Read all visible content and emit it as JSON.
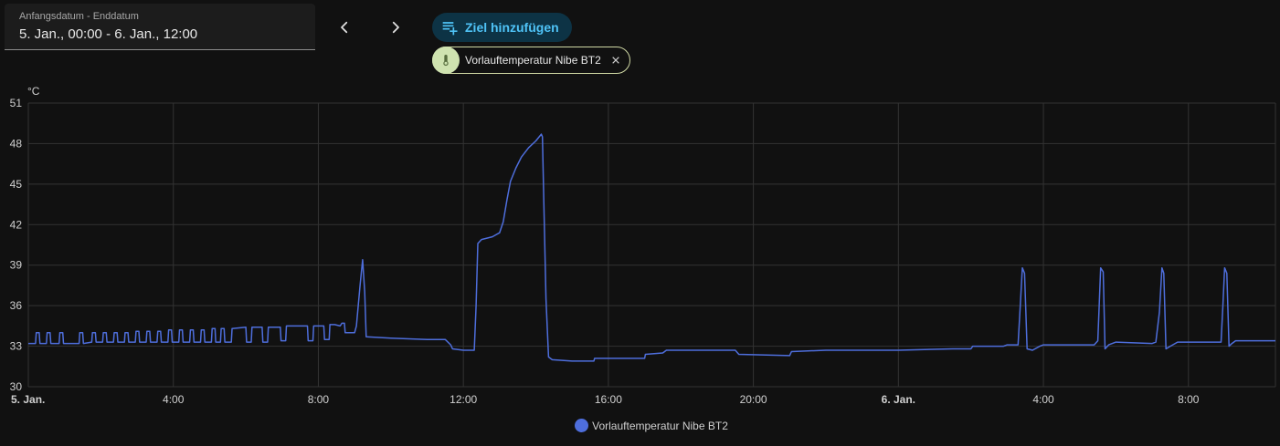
{
  "date_picker": {
    "label": "Anfangsdatum - Enddatum",
    "value": "5. Jan., 00:00 - 6. Jan., 12:00"
  },
  "nav": {
    "prev_icon": "chevron-left-icon",
    "next_icon": "chevron-right-icon"
  },
  "add_target": {
    "label": "Ziel hinzufügen",
    "icon": "playlist-plus-icon",
    "color": "#4fc3f7"
  },
  "chip": {
    "label": "Vorlauftemperatur Nibe BT2",
    "icon": "thermometer-icon"
  },
  "chart_data": {
    "type": "line",
    "ylabel": "°C",
    "ylim": [
      30,
      51
    ],
    "yticks": [
      "30",
      "33",
      "36",
      "39",
      "42",
      "45",
      "48",
      "51"
    ],
    "xlim_hours": [
      0,
      34.4
    ],
    "xticks": [
      {
        "label": "5. Jan.",
        "hour": 0,
        "bold": true
      },
      {
        "label": "4:00",
        "hour": 4,
        "bold": false
      },
      {
        "label": "8:00",
        "hour": 8,
        "bold": false
      },
      {
        "label": "12:00",
        "hour": 12,
        "bold": false
      },
      {
        "label": "16:00",
        "hour": 16,
        "bold": false
      },
      {
        "label": "20:00",
        "hour": 20,
        "bold": false
      },
      {
        "label": "6. Jan.",
        "hour": 24,
        "bold": true
      },
      {
        "label": "4:00",
        "hour": 28,
        "bold": false
      },
      {
        "label": "8:00",
        "hour": 32,
        "bold": false
      }
    ],
    "grid": true,
    "legend_position": "bottom-center",
    "series": [
      {
        "name": "Vorlauftemperatur Nibe BT2",
        "color": "#4e6edc",
        "points": [
          [
            0.0,
            33.2
          ],
          [
            0.2,
            33.2
          ],
          [
            0.22,
            34.0
          ],
          [
            0.3,
            34.0
          ],
          [
            0.32,
            33.2
          ],
          [
            0.5,
            33.2
          ],
          [
            0.52,
            34.0
          ],
          [
            0.6,
            34.0
          ],
          [
            0.62,
            33.2
          ],
          [
            0.85,
            33.2
          ],
          [
            0.87,
            34.0
          ],
          [
            0.95,
            34.0
          ],
          [
            0.97,
            33.2
          ],
          [
            1.4,
            33.2
          ],
          [
            1.42,
            34.0
          ],
          [
            1.5,
            34.0
          ],
          [
            1.52,
            33.2
          ],
          [
            1.75,
            33.3
          ],
          [
            1.77,
            34.0
          ],
          [
            1.85,
            34.0
          ],
          [
            1.87,
            33.3
          ],
          [
            2.05,
            33.3
          ],
          [
            2.07,
            34.0
          ],
          [
            2.15,
            34.0
          ],
          [
            2.17,
            33.3
          ],
          [
            2.35,
            33.3
          ],
          [
            2.37,
            34.0
          ],
          [
            2.45,
            34.0
          ],
          [
            2.47,
            33.3
          ],
          [
            2.65,
            33.3
          ],
          [
            2.67,
            34.0
          ],
          [
            2.75,
            34.0
          ],
          [
            2.77,
            33.3
          ],
          [
            2.95,
            33.3
          ],
          [
            2.97,
            34.1
          ],
          [
            3.05,
            34.1
          ],
          [
            3.07,
            33.3
          ],
          [
            3.25,
            33.3
          ],
          [
            3.27,
            34.1
          ],
          [
            3.35,
            34.1
          ],
          [
            3.37,
            33.3
          ],
          [
            3.55,
            33.3
          ],
          [
            3.57,
            34.1
          ],
          [
            3.65,
            34.1
          ],
          [
            3.67,
            33.3
          ],
          [
            3.85,
            33.3
          ],
          [
            3.87,
            34.2
          ],
          [
            3.95,
            34.2
          ],
          [
            3.97,
            33.3
          ],
          [
            4.15,
            33.3
          ],
          [
            4.17,
            34.2
          ],
          [
            4.25,
            34.2
          ],
          [
            4.27,
            33.3
          ],
          [
            4.45,
            33.3
          ],
          [
            4.47,
            34.2
          ],
          [
            4.55,
            34.2
          ],
          [
            4.57,
            33.3
          ],
          [
            4.75,
            33.3
          ],
          [
            4.77,
            34.2
          ],
          [
            4.85,
            34.2
          ],
          [
            4.87,
            33.3
          ],
          [
            5.05,
            33.3
          ],
          [
            5.07,
            34.3
          ],
          [
            5.15,
            34.3
          ],
          [
            5.17,
            33.3
          ],
          [
            5.3,
            33.3
          ],
          [
            5.32,
            34.3
          ],
          [
            5.4,
            34.3
          ],
          [
            5.42,
            33.3
          ],
          [
            5.6,
            33.3
          ],
          [
            5.62,
            34.3
          ],
          [
            6.0,
            34.4
          ],
          [
            6.02,
            33.3
          ],
          [
            6.15,
            33.3
          ],
          [
            6.17,
            34.4
          ],
          [
            6.45,
            34.4
          ],
          [
            6.47,
            33.3
          ],
          [
            6.6,
            33.3
          ],
          [
            6.62,
            34.4
          ],
          [
            6.95,
            34.4
          ],
          [
            6.97,
            33.4
          ],
          [
            7.1,
            33.4
          ],
          [
            7.12,
            34.5
          ],
          [
            7.7,
            34.5
          ],
          [
            7.72,
            33.4
          ],
          [
            7.85,
            33.4
          ],
          [
            7.87,
            34.5
          ],
          [
            8.15,
            34.5
          ],
          [
            8.17,
            33.5
          ],
          [
            8.3,
            33.5
          ],
          [
            8.32,
            34.6
          ],
          [
            8.45,
            34.6
          ],
          [
            8.6,
            34.5
          ],
          [
            8.65,
            34.7
          ],
          [
            8.72,
            34.7
          ],
          [
            8.74,
            34.0
          ],
          [
            9.0,
            34.0
          ],
          [
            9.05,
            34.5
          ],
          [
            9.15,
            37.5
          ],
          [
            9.22,
            39.4
          ],
          [
            9.28,
            37.0
          ],
          [
            9.32,
            33.7
          ],
          [
            10.0,
            33.6
          ],
          [
            11.0,
            33.5
          ],
          [
            11.5,
            33.5
          ],
          [
            11.65,
            33.1
          ],
          [
            11.7,
            32.8
          ],
          [
            12.0,
            32.7
          ],
          [
            12.3,
            32.7
          ],
          [
            12.35,
            36.0
          ],
          [
            12.4,
            40.6
          ],
          [
            12.5,
            40.9
          ],
          [
            12.8,
            41.1
          ],
          [
            13.0,
            41.4
          ],
          [
            13.1,
            42.2
          ],
          [
            13.2,
            43.8
          ],
          [
            13.3,
            45.2
          ],
          [
            13.45,
            46.2
          ],
          [
            13.6,
            47.0
          ],
          [
            13.8,
            47.7
          ],
          [
            14.0,
            48.2
          ],
          [
            14.15,
            48.7
          ],
          [
            14.18,
            48.5
          ],
          [
            14.22,
            43.5
          ],
          [
            14.28,
            36.5
          ],
          [
            14.35,
            32.2
          ],
          [
            14.45,
            32.0
          ],
          [
            15.0,
            31.9
          ],
          [
            15.5,
            31.9
          ],
          [
            15.6,
            31.9
          ],
          [
            15.62,
            32.1
          ],
          [
            17.0,
            32.1
          ],
          [
            17.02,
            32.4
          ],
          [
            17.5,
            32.5
          ],
          [
            17.6,
            32.7
          ],
          [
            19.5,
            32.7
          ],
          [
            19.6,
            32.4
          ],
          [
            21.0,
            32.3
          ],
          [
            21.05,
            32.6
          ],
          [
            22.0,
            32.7
          ],
          [
            23.0,
            32.7
          ],
          [
            24.0,
            32.7
          ],
          [
            25.5,
            32.8
          ],
          [
            26.0,
            32.8
          ],
          [
            26.05,
            33.0
          ],
          [
            26.9,
            33.0
          ],
          [
            27.0,
            33.1
          ],
          [
            27.3,
            33.1
          ],
          [
            27.35,
            35.5
          ],
          [
            27.42,
            38.8
          ],
          [
            27.48,
            38.4
          ],
          [
            27.55,
            32.8
          ],
          [
            27.7,
            32.7
          ],
          [
            27.9,
            33.0
          ],
          [
            28.0,
            33.1
          ],
          [
            28.3,
            33.1
          ],
          [
            29.4,
            33.1
          ],
          [
            29.5,
            33.4
          ],
          [
            29.58,
            38.8
          ],
          [
            29.65,
            38.5
          ],
          [
            29.7,
            32.8
          ],
          [
            29.8,
            33.1
          ],
          [
            30.0,
            33.3
          ],
          [
            31.0,
            33.2
          ],
          [
            31.1,
            33.3
          ],
          [
            31.2,
            35.5
          ],
          [
            31.27,
            38.8
          ],
          [
            31.32,
            38.4
          ],
          [
            31.38,
            32.8
          ],
          [
            31.5,
            33.0
          ],
          [
            31.7,
            33.3
          ],
          [
            32.5,
            33.3
          ],
          [
            32.9,
            33.3
          ],
          [
            32.95,
            36.0
          ],
          [
            33.0,
            38.8
          ],
          [
            33.06,
            38.4
          ],
          [
            33.12,
            33.0
          ],
          [
            33.2,
            33.2
          ],
          [
            33.3,
            33.4
          ],
          [
            33.8,
            33.4
          ],
          [
            34.4,
            33.4
          ]
        ]
      }
    ]
  }
}
